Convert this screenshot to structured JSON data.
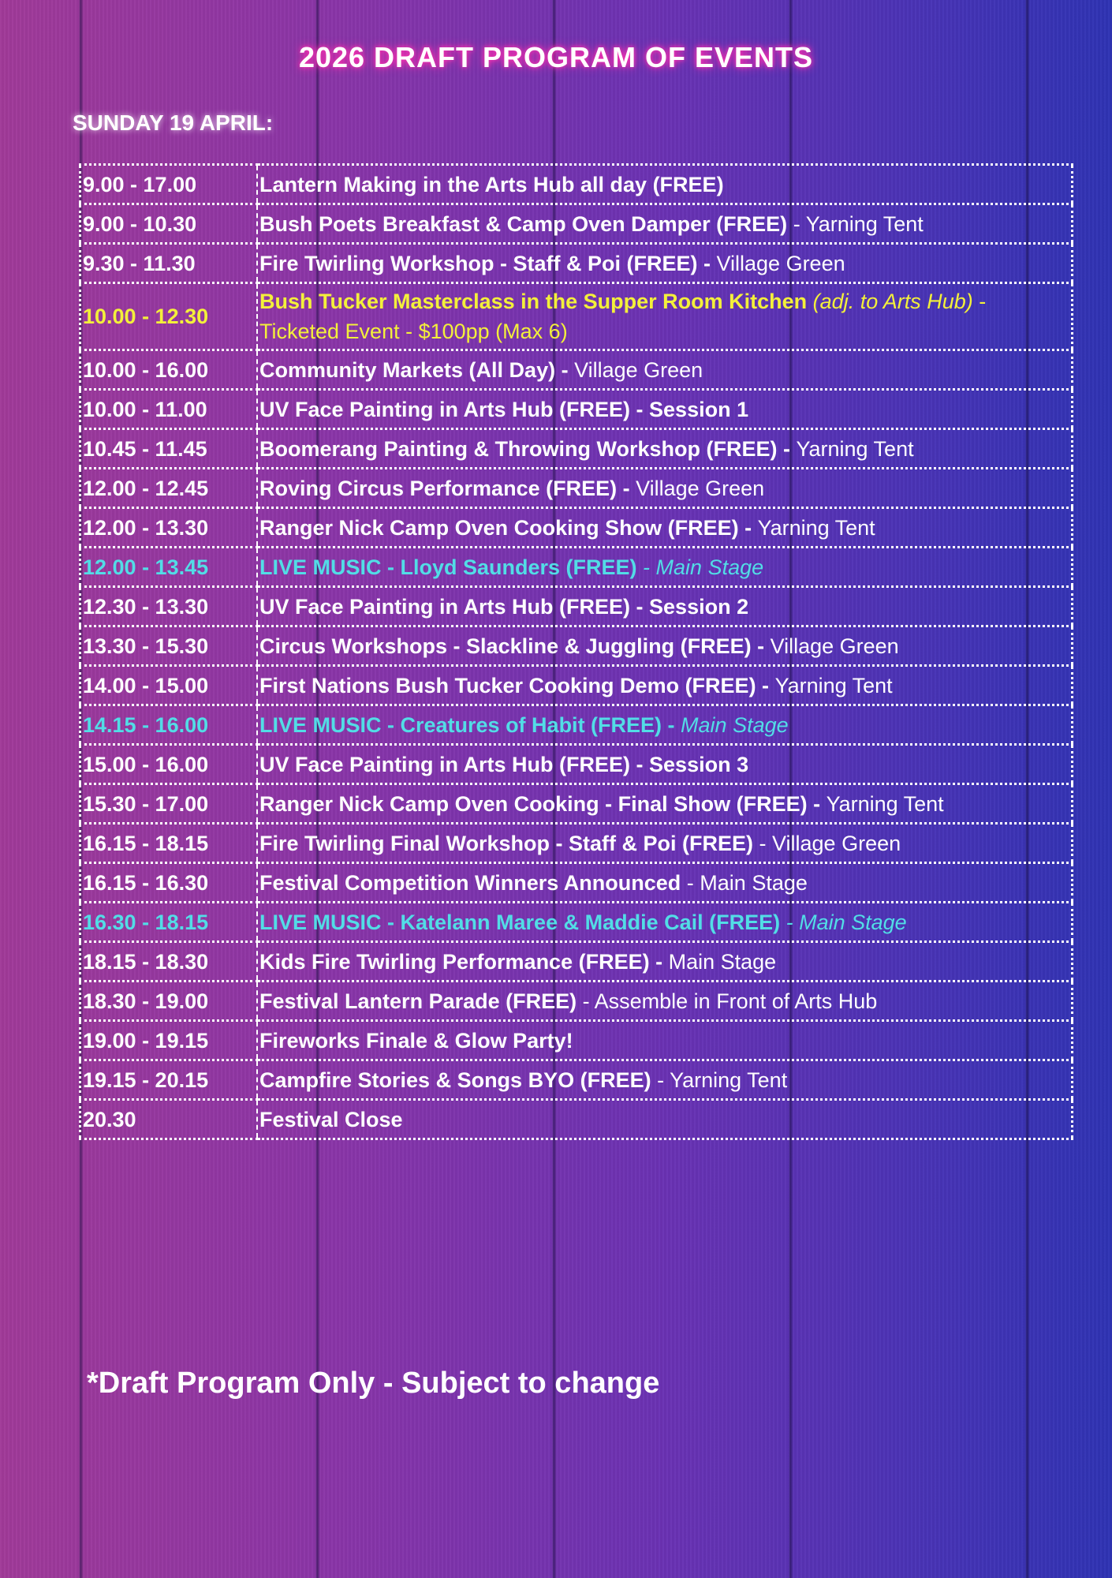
{
  "title": "2026 DRAFT PROGRAM OF EVENTS",
  "day": "SUNDAY 19 APRIL:",
  "colors": {
    "title_glow": "#ff2fb0",
    "highlight_yellow": "#f3f03a",
    "highlight_cyan": "#52dde6"
  },
  "rows": [
    {
      "time": "9.00 - 17.00",
      "color": "white",
      "parts": [
        {
          "t": "Lantern Making in the Arts Hub all day (FREE)",
          "s": "b"
        }
      ]
    },
    {
      "time": "9.00 - 10.30",
      "color": "white",
      "parts": [
        {
          "t": "Bush Poets Breakfast & Camp Oven Damper (FREE)",
          "s": "b"
        },
        {
          "t": " - Yarning Tent",
          "s": "l"
        }
      ]
    },
    {
      "time": "9.30 - 11.30",
      "color": "white",
      "parts": [
        {
          "t": "Fire Twirling Workshop - Staff & Poi (FREE) - ",
          "s": "b"
        },
        {
          "t": "Village Green",
          "s": "l"
        }
      ]
    },
    {
      "time": "10.00 - 12.30",
      "color": "yellow",
      "parts": [
        {
          "t": "Bush Tucker Masterclass in the Supper Room Kitchen ",
          "s": "b"
        },
        {
          "t": "(adj. to Arts Hub)",
          "s": "i"
        },
        {
          "t": " - Ticketed Event - $100pp (Max 6)",
          "s": "l"
        }
      ]
    },
    {
      "time": "10.00 - 16.00",
      "color": "white",
      "parts": [
        {
          "t": "Community Markets (All Day) - ",
          "s": "b"
        },
        {
          "t": "Village Green",
          "s": "l"
        }
      ]
    },
    {
      "time": "10.00 - 11.00",
      "color": "white",
      "parts": [
        {
          "t": "UV Face Painting in Arts Hub (FREE) - Session 1",
          "s": "b"
        }
      ]
    },
    {
      "time": "10.45 - 11.45",
      "color": "white",
      "parts": [
        {
          "t": "Boomerang Painting & Throwing Workshop (FREE) - ",
          "s": "b"
        },
        {
          "t": "Yarning Tent",
          "s": "l"
        }
      ]
    },
    {
      "time": "12.00 - 12.45",
      "color": "white",
      "parts": [
        {
          "t": "Roving Circus Performance (FREE) - ",
          "s": "b"
        },
        {
          "t": "Village Green",
          "s": "l"
        }
      ]
    },
    {
      "time": "12.00 - 13.30",
      "color": "white",
      "parts": [
        {
          "t": "Ranger Nick Camp Oven Cooking Show (FREE)  - ",
          "s": "b"
        },
        {
          "t": "Yarning Tent",
          "s": "l"
        }
      ]
    },
    {
      "time": "12.00 - 13.45",
      "color": "cyan",
      "parts": [
        {
          "t": "LIVE MUSIC - Lloyd Saunders (FREE)",
          "s": "b"
        },
        {
          "t": " - Main Stage",
          "s": "i"
        }
      ]
    },
    {
      "time": "12.30 - 13.30",
      "color": "white",
      "parts": [
        {
          "t": "UV Face Painting in Arts Hub (FREE) - Session 2",
          "s": "b"
        }
      ]
    },
    {
      "time": "13.30 - 15.30",
      "color": "white",
      "parts": [
        {
          "t": "Circus Workshops - Slackline & Juggling (FREE) - ",
          "s": "b"
        },
        {
          "t": "Village Green",
          "s": "l"
        }
      ]
    },
    {
      "time": "14.00 - 15.00",
      "color": "white",
      "parts": [
        {
          "t": "First Nations Bush Tucker Cooking Demo (FREE) - ",
          "s": "b"
        },
        {
          "t": "Yarning Tent",
          "s": "l"
        }
      ]
    },
    {
      "time": "14.15 - 16.00",
      "color": "cyan",
      "parts": [
        {
          "t": "LIVE MUSIC - Creatures of Habit (FREE) - ",
          "s": "b"
        },
        {
          "t": "Main Stage",
          "s": "i"
        }
      ]
    },
    {
      "time": "15.00 - 16.00",
      "color": "white",
      "parts": [
        {
          "t": "UV Face Painting in Arts Hub (FREE) - Session 3",
          "s": "b"
        }
      ]
    },
    {
      "time": "15.30 - 17.00",
      "color": "white",
      "parts": [
        {
          "t": "Ranger Nick Camp Oven Cooking - Final Show (FREE) - ",
          "s": "b"
        },
        {
          "t": "Yarning Tent",
          "s": "l"
        }
      ]
    },
    {
      "time": "16.15 - 18.15",
      "color": "white",
      "parts": [
        {
          "t": "Fire Twirling Final Workshop - Staff & Poi (FREE)",
          "s": "b"
        },
        {
          "t": " - Village Green",
          "s": "l"
        }
      ]
    },
    {
      "time": "16.15 - 16.30",
      "color": "white",
      "parts": [
        {
          "t": "Festival Competition Winners Announced",
          "s": "b"
        },
        {
          "t": " - Main Stage",
          "s": "l"
        }
      ]
    },
    {
      "time": "16.30 - 18.15",
      "color": "cyan",
      "parts": [
        {
          "t": "LIVE MUSIC - Katelann Maree & Maddie Cail (FREE)",
          "s": "b"
        },
        {
          "t": " - Main Stage",
          "s": "i"
        }
      ]
    },
    {
      "time": "18.15 - 18.30",
      "color": "white",
      "parts": [
        {
          "t": "Kids Fire Twirling Performance (FREE) - ",
          "s": "b"
        },
        {
          "t": "Main Stage",
          "s": "l"
        }
      ]
    },
    {
      "time": "18.30 - 19.00",
      "color": "white",
      "parts": [
        {
          "t": "Festival Lantern Parade (FREE)",
          "s": "b"
        },
        {
          "t": " - Assemble in Front of Arts Hub",
          "s": "l"
        }
      ]
    },
    {
      "time": "19.00 - 19.15",
      "color": "white",
      "parts": [
        {
          "t": "Fireworks Finale & Glow Party!",
          "s": "b"
        }
      ]
    },
    {
      "time": "19.15 - 20.15",
      "color": "white",
      "parts": [
        {
          "t": "Campfire Stories & Songs BYO (FREE)",
          "s": "b"
        },
        {
          "t": " - Yarning Tent",
          "s": "l"
        }
      ]
    },
    {
      "time": "20.30",
      "color": "white",
      "parts": [
        {
          "t": "Festival Close",
          "s": "b"
        }
      ]
    }
  ],
  "footer": "*Draft Program Only - Subject to change"
}
